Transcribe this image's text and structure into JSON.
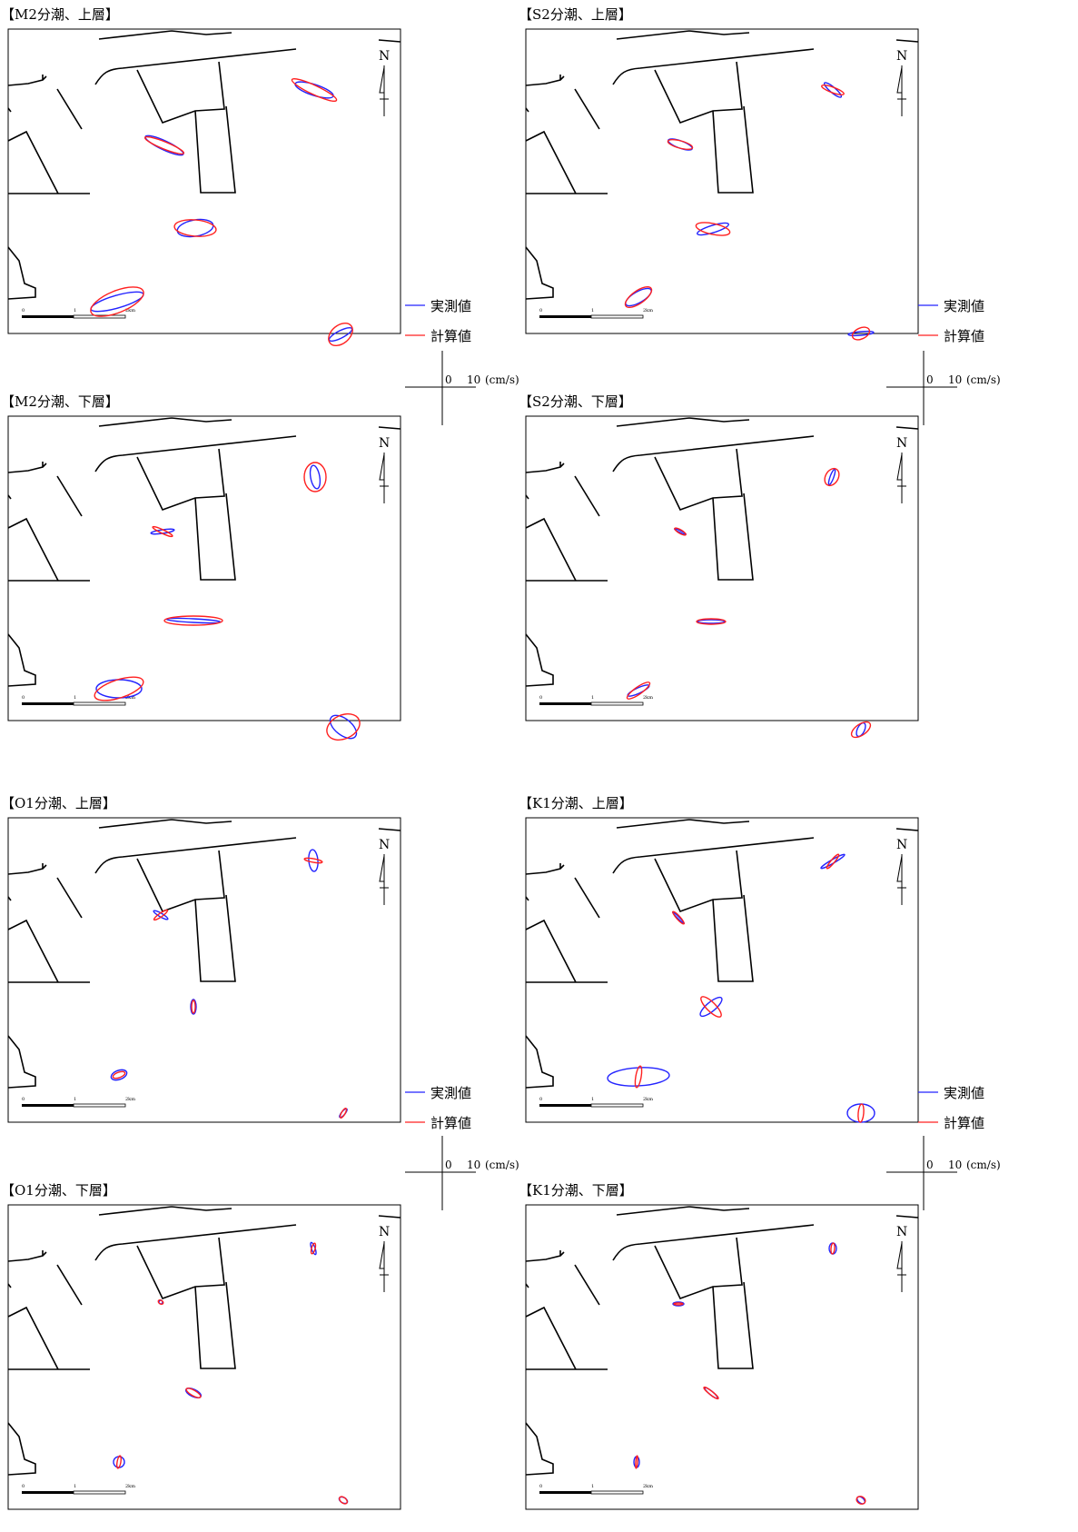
{
  "legend": {
    "observed": "実測値",
    "computed": "計算値",
    "scale_zero": "0",
    "scale_ten": "10",
    "scale_unit": "(cm/s)"
  },
  "colors": {
    "observed": "#2323ff",
    "computed": "#ff2020",
    "coast": "#000000"
  },
  "map": {
    "north_label": "N",
    "scalebar_labels": [
      "0",
      "1",
      "2km"
    ],
    "panels": [
      {
        "title": "【M2分潮、上層】",
        "ellipses": [
          {
            "observed": [
              337,
              67,
              6,
              22,
              -72
            ],
            "computed": [
              337,
              67,
              5,
              27,
              -65
            ]
          },
          {
            "observed": [
              172,
              128,
              23,
              5,
              25
            ],
            "computed": [
              172,
              128,
              23,
              4,
              22
            ]
          },
          {
            "observed": [
              206,
              219,
              20,
              9,
              -10
            ],
            "computed": [
              206,
              219,
              23,
              9,
              5
            ]
          },
          {
            "observed": [
              120,
              300,
              30,
              7,
              -16
            ],
            "computed": [
              120,
              300,
              31,
              12,
              -22
            ]
          },
          {
            "observed": [
              366,
              336,
              14,
              4,
              -27
            ],
            "computed": [
              366,
              336,
              15,
              10,
              -40
            ]
          }
        ]
      },
      {
        "title": "【S2分潮、上層】",
        "ellipses": [
          {
            "observed": [
              338,
              67,
              3,
              12,
              -50
            ],
            "computed": [
              338,
              67,
              3,
              13,
              -70
            ]
          },
          {
            "observed": [
              170,
              127,
              14,
              4,
              20
            ],
            "computed": [
              170,
              127,
              14,
              4,
              15
            ]
          },
          {
            "observed": [
              206,
              220,
              18,
              4,
              -17
            ],
            "computed": [
              206,
              220,
              19,
              6,
              12
            ]
          },
          {
            "observed": [
              124,
              295,
              16,
              6,
              -30
            ],
            "computed": [
              124,
              295,
              17,
              7,
              -35
            ]
          },
          {
            "observed": [
              369,
              335,
              14,
              2,
              -5
            ],
            "computed": [
              369,
              335,
              10,
              6,
              -25
            ]
          }
        ]
      },
      {
        "title": "【M2分潮、下層】",
        "ellipses": [
          {
            "observed": [
              338,
              67,
              5,
              13,
              -10
            ],
            "computed": [
              338,
              67,
              12,
              16,
              0
            ]
          },
          {
            "observed": [
              170,
              127,
              13,
              2,
              -8
            ],
            "computed": [
              170,
              127,
              12,
              2,
              25
            ]
          },
          {
            "observed": [
              204,
              225,
              30,
              2,
              3
            ],
            "computed": [
              204,
              225,
              32,
              5,
              0
            ]
          },
          {
            "observed": [
              122,
              300,
              25,
              10,
              0
            ],
            "computed": [
              122,
              300,
              28,
              10,
              -18
            ]
          },
          {
            "observed": [
              369,
              342,
              17,
              9,
              38
            ],
            "computed": [
              369,
              342,
              19,
              13,
              -25
            ]
          }
        ]
      },
      {
        "title": "【S2分潮、下層】",
        "ellipses": [
          {
            "observed": [
              337,
              67,
              2,
              9,
              20
            ],
            "computed": [
              337,
              67,
              7,
              10,
              30
            ]
          },
          {
            "observed": [
              170,
              127,
              7,
              1,
              25
            ],
            "computed": [
              170,
              127,
              7,
              2,
              30
            ]
          },
          {
            "observed": [
              204,
              226,
              15,
              2,
              0
            ],
            "computed": [
              204,
              226,
              16,
              3,
              0
            ]
          },
          {
            "observed": [
              124,
              302,
              13,
              3,
              -25
            ],
            "computed": [
              124,
              302,
              15,
              4,
              -35
            ]
          },
          {
            "observed": [
              369,
              345,
              4,
              8,
              25
            ],
            "computed": [
              369,
              345,
              12,
              6,
              -35
            ]
          }
        ]
      },
      {
        "title": "【O1分潮、上層】",
        "ellipses": [
          {
            "observed": [
              336,
              47,
              5,
              12,
              -5
            ],
            "computed": [
              336,
              47,
              2,
              10,
              -80
            ]
          },
          {
            "observed": [
              168,
              107,
              9,
              2,
              30
            ],
            "computed": [
              168,
              107,
              9,
              2,
              -35
            ]
          },
          {
            "observed": [
              204,
              208,
              3,
              8,
              0
            ],
            "computed": [
              204,
              208,
              2,
              7,
              0
            ]
          },
          {
            "observed": [
              122,
              283,
              9,
              5,
              -20
            ],
            "computed": [
              122,
              283,
              7,
              3,
              -20
            ]
          },
          {
            "observed": [
              369,
              325,
              2,
              6,
              40
            ],
            "computed": [
              369,
              325,
              2,
              6,
              30
            ]
          }
        ]
      },
      {
        "title": "【K1分潮、上層】",
        "ellipses": [
          {
            "observed": [
              338,
              48,
              15,
              2,
              -30
            ],
            "computed": [
              338,
              48,
              2,
              10,
              40
            ]
          },
          {
            "observed": [
              168,
              110,
              9,
              1,
              45
            ],
            "computed": [
              168,
              110,
              9,
              2,
              48
            ]
          },
          {
            "observed": [
              204,
              208,
              15,
              5,
              -40
            ],
            "computed": [
              204,
              208,
              15,
              5,
              45
            ]
          },
          {
            "observed": [
              124,
              285,
              34,
              10,
              -3
            ],
            "computed": [
              124,
              285,
              3,
              12,
              10
            ]
          },
          {
            "observed": [
              369,
              325,
              15,
              10,
              0
            ],
            "computed": [
              369,
              325,
              3,
              10,
              5
            ]
          }
        ]
      },
      {
        "title": "【O1分潮、下層】",
        "ellipses": [
          {
            "observed": [
              336,
              48,
              2,
              7,
              -20
            ],
            "computed": [
              336,
              48,
              2,
              6,
              15
            ]
          },
          {
            "observed": [
              168,
              107,
              2,
              2,
              0
            ],
            "computed": [
              168,
              107,
              3,
              2,
              30
            ]
          },
          {
            "observed": [
              204,
              207,
              9,
              4,
              25
            ],
            "computed": [
              204,
              207,
              9,
              3,
              30
            ]
          },
          {
            "observed": [
              122,
              283,
              6,
              6,
              0
            ],
            "computed": [
              122,
              283,
              2,
              7,
              10
            ]
          },
          {
            "observed": [
              369,
              325,
              5,
              3,
              30
            ],
            "computed": [
              369,
              325,
              5,
              3,
              40
            ]
          }
        ]
      },
      {
        "title": "【K1分潮、下層】",
        "ellipses": [
          {
            "observed": [
              338,
              48,
              4,
              6,
              0
            ],
            "computed": [
              338,
              48,
              2,
              6,
              5
            ]
          },
          {
            "observed": [
              168,
              109,
              6,
              2,
              0
            ],
            "computed": [
              168,
              109,
              5,
              1,
              0
            ]
          },
          {
            "observed": [
              204,
              207,
              9,
              2,
              40
            ],
            "computed": [
              204,
              207,
              10,
              2,
              38
            ]
          },
          {
            "observed": [
              122,
              283,
              3,
              6,
              0
            ],
            "computed": [
              122,
              283,
              1,
              7,
              5
            ]
          },
          {
            "observed": [
              369,
              325,
              5,
              3,
              40
            ],
            "computed": [
              369,
              325,
              5,
              4,
              25
            ]
          }
        ]
      }
    ]
  }
}
